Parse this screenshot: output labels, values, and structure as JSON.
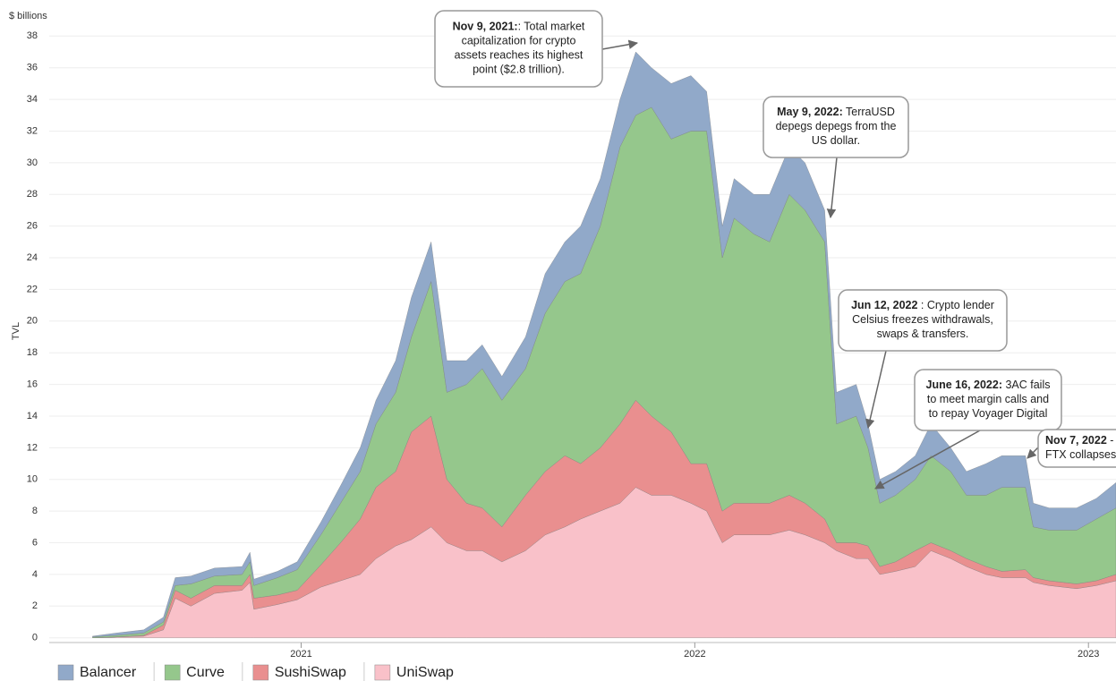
{
  "chart_data": {
    "type": "area",
    "stacked": true,
    "y_unit": "$ billions",
    "y_label": "TVL",
    "xlim": [
      2020.36,
      2023.07
    ],
    "xticks": [
      2021,
      2022,
      2023
    ],
    "ylim": [
      -0.3,
      38.3
    ],
    "yticks": [
      0,
      2,
      4,
      6,
      8,
      10,
      12,
      14,
      16,
      18,
      20,
      22,
      24,
      26,
      28,
      30,
      32,
      34,
      36,
      38
    ],
    "grid": true,
    "legend": "bottom-left",
    "x": [
      2020.47,
      2020.53,
      2020.6,
      2020.65,
      2020.68,
      2020.72,
      2020.78,
      2020.85,
      2020.87,
      2020.88,
      2020.94,
      2020.99,
      2021.05,
      2021.1,
      2021.15,
      2021.19,
      2021.24,
      2021.28,
      2021.33,
      2021.37,
      2021.42,
      2021.46,
      2021.51,
      2021.57,
      2021.62,
      2021.67,
      2021.71,
      2021.76,
      2021.81,
      2021.85,
      2021.89,
      2021.94,
      2021.99,
      2022.03,
      2022.07,
      2022.1,
      2022.15,
      2022.19,
      2022.24,
      2022.28,
      2022.33,
      2022.36,
      2022.41,
      2022.44,
      2022.47,
      2022.51,
      2022.56,
      2022.6,
      2022.65,
      2022.69,
      2022.74,
      2022.78,
      2022.84,
      2022.86,
      2022.9,
      2022.97,
      2023.02,
      2023.07
    ],
    "series": [
      {
        "name": "Balancer",
        "color": "#91a9c9",
        "values": [
          0.05,
          0.15,
          0.2,
          0.3,
          0.5,
          0.5,
          0.5,
          0.5,
          0.6,
          0.4,
          0.4,
          0.5,
          0.8,
          1.1,
          1.5,
          1.5,
          2.0,
          2.5,
          2.5,
          2.0,
          1.5,
          1.5,
          1.5,
          2.0,
          2.5,
          2.5,
          3.0,
          3.0,
          3.0,
          4.0,
          2.5,
          3.5,
          3.5,
          2.5,
          2.0,
          2.5,
          2.5,
          3.0,
          3.0,
          3.0,
          2.0,
          2.0,
          2.0,
          1.5,
          1.5,
          1.5,
          1.5,
          2.0,
          1.5,
          1.5,
          2.0,
          2.0,
          2.0,
          1.5,
          1.4,
          1.4,
          1.3,
          1.6
        ]
      },
      {
        "name": "Curve",
        "color": "#95c78c",
        "values": [
          0.05,
          0.1,
          0.15,
          0.2,
          0.3,
          0.9,
          0.6,
          0.7,
          0.8,
          0.8,
          1.1,
          1.3,
          1.9,
          2.5,
          3.0,
          4.0,
          5.0,
          6.0,
          8.5,
          5.5,
          7.5,
          8.8,
          8.0,
          8.0,
          10.0,
          11.0,
          12.0,
          14.0,
          17.5,
          18.0,
          19.5,
          18.5,
          21.0,
          21.0,
          16.0,
          18.0,
          17.0,
          16.5,
          19.0,
          18.5,
          17.5,
          7.5,
          8.0,
          6.2,
          4.0,
          4.2,
          4.5,
          5.5,
          5.0,
          4.0,
          4.5,
          5.3,
          5.2,
          3.2,
          3.2,
          3.4,
          3.9,
          4.2
        ]
      },
      {
        "name": "SushiSwap",
        "color": "#e98f8f",
        "values": [
          0,
          0,
          0.05,
          0.3,
          0.5,
          0.5,
          0.5,
          0.3,
          0.5,
          0.7,
          0.6,
          0.6,
          1.4,
          2.4,
          3.5,
          4.5,
          4.7,
          6.8,
          7.0,
          4.0,
          3.0,
          2.7,
          2.2,
          3.5,
          4.0,
          4.5,
          3.5,
          4.0,
          5.0,
          5.5,
          5.0,
          4.0,
          2.5,
          3.0,
          2.0,
          2.0,
          2.0,
          2.0,
          2.2,
          2.0,
          1.5,
          0.5,
          1.0,
          0.8,
          0.5,
          0.6,
          1.0,
          0.5,
          0.5,
          0.5,
          0.5,
          0.4,
          0.5,
          0.3,
          0.3,
          0.3,
          0.3,
          0.4
        ]
      },
      {
        "name": "UniSwap",
        "color": "#f9c1c9",
        "values": [
          0,
          0.05,
          0.1,
          0.5,
          2.5,
          2.0,
          2.8,
          3.0,
          3.5,
          1.8,
          2.1,
          2.4,
          3.2,
          3.6,
          4.0,
          5.0,
          5.8,
          6.2,
          7.0,
          6.0,
          5.5,
          5.5,
          4.8,
          5.5,
          6.5,
          7.0,
          7.5,
          8.0,
          8.5,
          9.5,
          9.0,
          9.0,
          8.5,
          8.0,
          6.0,
          6.5,
          6.5,
          6.5,
          6.8,
          6.5,
          6.0,
          5.5,
          5.0,
          5.0,
          4.0,
          4.2,
          4.5,
          5.5,
          5.0,
          4.5,
          4.0,
          3.8,
          3.8,
          3.5,
          3.3,
          3.1,
          3.3,
          3.6
        ]
      }
    ],
    "annotations": [
      {
        "bold": "Nov 9, 2021:",
        "lines": [
          ": Total market",
          "capitalization for crypto",
          "assets reaches its highest",
          "point ($2.8 trillion)."
        ]
      },
      {
        "bold": "May 9, 2022:",
        "lines": [
          " TerraUSD",
          "depegs depegs from the",
          "US dollar."
        ]
      },
      {
        "bold": "Jun 12, 2022",
        "lines": [
          " : Crypto lender",
          "Celsius freezes withdrawals,",
          "swaps & transfers."
        ]
      },
      {
        "bold": "June 16, 2022:",
        "lines": [
          " 3AC fails",
          "to meet margin calls and",
          "to repay Voyager Digital"
        ]
      },
      {
        "bold": "Nov 7, 2022",
        "lines": [
          " -",
          "FTX collapses"
        ]
      }
    ]
  }
}
